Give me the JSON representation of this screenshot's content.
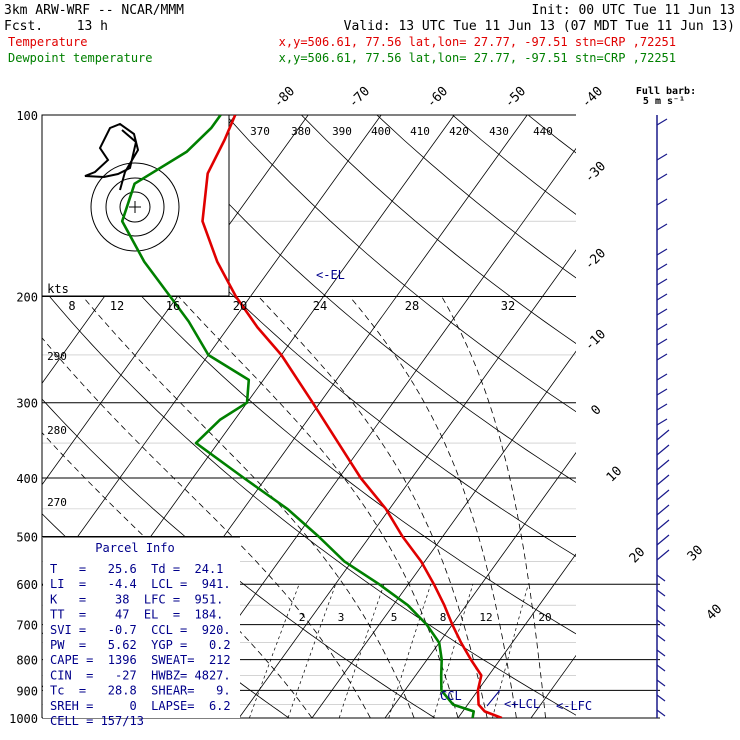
{
  "header": {
    "title": "3km ARW-WRF -- NCAR/MMM",
    "init": "Init: 00 UTC Tue 11 Jun 13",
    "fcst_label": "Fcst.",
    "fcst_value": "13 h",
    "valid": "Valid: 13 UTC Tue 11 Jun 13 (07 MDT Tue 11 Jun 13)",
    "temp_legend": "Temperature",
    "temp_loc": "x,y=506.61, 77.56   lat,lon= 27.77, -97.51   stn=CRP ,72251",
    "dew_legend": "Dewpoint temperature",
    "dew_loc": "x,y=506.61, 77.56   lat,lon= 27.77, -97.51   stn=CRP ,72251",
    "barb_key_1": "Full barb:",
    "barb_key_2": "5 m s⁻¹"
  },
  "colors": {
    "temperature": "#e00000",
    "dewpoint": "#008000",
    "parcel_box": "#00008b",
    "wind_barbs": "#1a1a8c"
  },
  "chart_data": {
    "type": "skew-t log-p",
    "pressure_levels": [
      100,
      200,
      300,
      400,
      500,
      600,
      700,
      800,
      900,
      1000
    ],
    "temperature_ticks": [
      -80,
      -70,
      -60,
      -50,
      -40,
      -30,
      -20,
      -10,
      0,
      10,
      20,
      30,
      40
    ],
    "theta_labels": [
      370,
      380,
      390,
      400,
      410,
      420,
      430,
      440
    ],
    "theta_left_labels": [
      290,
      280,
      270
    ],
    "hodograph_ring_labels": [
      "kts",
      "8",
      "12",
      "16",
      "20",
      "24",
      "28",
      "32"
    ],
    "mixing_ratio_labels": [
      "2",
      "3",
      "5",
      "8",
      "12",
      "20"
    ],
    "temperature": [
      {
        "p": 1000,
        "t": 26
      },
      {
        "p": 975,
        "t": 23
      },
      {
        "p": 950,
        "t": 21.5
      },
      {
        "p": 900,
        "t": 20
      },
      {
        "p": 850,
        "t": 19
      },
      {
        "p": 800,
        "t": 16
      },
      {
        "p": 750,
        "t": 13
      },
      {
        "p": 700,
        "t": 10
      },
      {
        "p": 650,
        "t": 7
      },
      {
        "p": 600,
        "t": 3.5
      },
      {
        "p": 550,
        "t": -0.5
      },
      {
        "p": 500,
        "t": -5.5
      },
      {
        "p": 450,
        "t": -10.5
      },
      {
        "p": 400,
        "t": -17
      },
      {
        "p": 350,
        "t": -23.5
      },
      {
        "p": 300,
        "t": -31
      },
      {
        "p": 250,
        "t": -40
      },
      {
        "p": 225,
        "t": -46
      },
      {
        "p": 200,
        "t": -52
      },
      {
        "p": 175,
        "t": -58
      },
      {
        "p": 150,
        "t": -64
      },
      {
        "p": 125,
        "t": -68
      },
      {
        "p": 110,
        "t": -69
      },
      {
        "p": 100,
        "t": -70
      }
    ],
    "dewpoint": [
      {
        "p": 1000,
        "t": 22
      },
      {
        "p": 975,
        "t": 21.5
      },
      {
        "p": 950,
        "t": 18
      },
      {
        "p": 900,
        "t": 15
      },
      {
        "p": 850,
        "t": 13.5
      },
      {
        "p": 800,
        "t": 12
      },
      {
        "p": 750,
        "t": 10
      },
      {
        "p": 700,
        "t": 6.5
      },
      {
        "p": 650,
        "t": 2
      },
      {
        "p": 600,
        "t": -4
      },
      {
        "p": 550,
        "t": -11
      },
      {
        "p": 500,
        "t": -17
      },
      {
        "p": 450,
        "t": -24
      },
      {
        "p": 400,
        "t": -33
      },
      {
        "p": 350,
        "t": -43
      },
      {
        "p": 320,
        "t": -42
      },
      {
        "p": 300,
        "t": -40
      },
      {
        "p": 275,
        "t": -42
      },
      {
        "p": 250,
        "t": -50
      },
      {
        "p": 220,
        "t": -56
      },
      {
        "p": 200,
        "t": -61
      },
      {
        "p": 175,
        "t": -68
      },
      {
        "p": 150,
        "t": -75
      },
      {
        "p": 130,
        "t": -77
      },
      {
        "p": 115,
        "t": -73
      },
      {
        "p": 105,
        "t": -72
      },
      {
        "p": 100,
        "t": -72
      }
    ],
    "annotations": {
      "el": "<-EL",
      "ccl": "CCL",
      "lcl": "<+LCL",
      "lfc": "<-LFC"
    }
  },
  "parcel": {
    "title": "Parcel Info",
    "lines": [
      "T   =   25.6  Td =  24.1",
      "LI  =   -4.4  LCL =  941.",
      "K   =    38  LFC =  951.",
      "TT  =    47  EL  =  184.",
      "SVI =   -0.7  CCL =  920.",
      "PW  =   5.62  YGP =   0.2",
      "CAPE =  1396  SWEAT=  212",
      "CIN  =   -27  HWBZ= 4827.",
      "Tc  =   28.8  SHEAR=   9.",
      "SREH =     0  LAPSE=  6.2",
      "CELL = 157/13"
    ]
  }
}
